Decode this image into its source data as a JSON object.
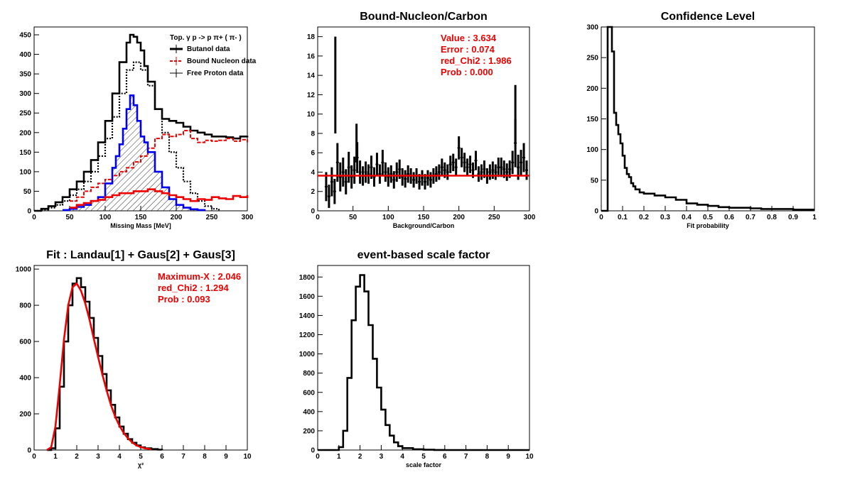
{
  "colors": {
    "black": "#000000",
    "red": "#ee0000",
    "blue": "#0000ee"
  },
  "chart_data": [
    {
      "id": "p1",
      "type": "line",
      "title": "",
      "xlabel": "Missing Mass [MeV]",
      "ylabel": "",
      "xlim": [
        0,
        300
      ],
      "ylim": [
        0,
        470
      ],
      "xticks": [
        0,
        50,
        100,
        150,
        200,
        250,
        300
      ],
      "yticks": [
        0,
        50,
        100,
        150,
        200,
        250,
        300,
        350,
        400,
        450
      ],
      "legend": {
        "title": "Top.  γ p -> p  π+ ( π- )",
        "position": "top-right",
        "entries": [
          "Butanol data",
          "Bound Nucleon data",
          "Free Proton data"
        ]
      },
      "series": [
        {
          "name": "Butanol data",
          "color": "#000000",
          "style": "step-thick",
          "x": [
            0,
            10,
            20,
            30,
            40,
            50,
            60,
            70,
            80,
            90,
            100,
            110,
            120,
            130,
            135,
            140,
            145,
            150,
            155,
            160,
            170,
            180,
            190,
            200,
            210,
            220,
            230,
            240,
            250,
            260,
            270,
            280,
            290,
            300
          ],
          "y": [
            0,
            5,
            12,
            22,
            35,
            55,
            75,
            100,
            130,
            175,
            230,
            300,
            380,
            430,
            450,
            445,
            430,
            410,
            370,
            330,
            260,
            235,
            230,
            225,
            215,
            205,
            200,
            195,
            190,
            190,
            188,
            185,
            190,
            192
          ]
        },
        {
          "name": "",
          "color": "#000000",
          "style": "dotted",
          "x": [
            0,
            10,
            20,
            30,
            40,
            50,
            60,
            70,
            80,
            90,
            100,
            110,
            120,
            130,
            140,
            150,
            160,
            170,
            180,
            190,
            200,
            210,
            220,
            230,
            240,
            250,
            260
          ],
          "y": [
            0,
            3,
            8,
            15,
            25,
            40,
            55,
            75,
            100,
            140,
            185,
            240,
            300,
            360,
            380,
            360,
            320,
            260,
            200,
            150,
            110,
            75,
            45,
            25,
            12,
            5,
            0
          ]
        },
        {
          "name": "Bound Nucleon data",
          "color": "#ee0000",
          "style": "step-dashed",
          "x": [
            50,
            60,
            70,
            80,
            90,
            100,
            110,
            120,
            130,
            140,
            150,
            160,
            170,
            180,
            190,
            200,
            210,
            220,
            230,
            240,
            250,
            260,
            270,
            280,
            290,
            300
          ],
          "y": [
            25,
            35,
            50,
            60,
            70,
            80,
            90,
            100,
            110,
            125,
            140,
            160,
            185,
            195,
            190,
            195,
            205,
            185,
            175,
            180,
            178,
            180,
            185,
            178,
            182,
            175
          ]
        },
        {
          "name": "",
          "color": "#0000ee",
          "style": "step-thick",
          "x": [
            40,
            50,
            60,
            70,
            80,
            90,
            100,
            110,
            115,
            120,
            125,
            130,
            135,
            140,
            145,
            150,
            155,
            160,
            170,
            180,
            190,
            200,
            210,
            220,
            230,
            240
          ],
          "y": [
            2,
            5,
            10,
            15,
            25,
            35,
            70,
            110,
            140,
            170,
            210,
            260,
            295,
            270,
            230,
            190,
            175,
            150,
            100,
            60,
            30,
            15,
            8,
            4,
            2,
            0
          ]
        },
        {
          "name": "",
          "color": "#ee0000",
          "style": "step-thick",
          "x": [
            50,
            60,
            70,
            80,
            90,
            100,
            110,
            120,
            130,
            140,
            150,
            160,
            170,
            180,
            190,
            200,
            210,
            220,
            230,
            240,
            250,
            260,
            270,
            280,
            290,
            300
          ],
          "y": [
            8,
            15,
            20,
            25,
            28,
            35,
            40,
            45,
            45,
            50,
            50,
            55,
            50,
            45,
            40,
            35,
            30,
            25,
            30,
            28,
            35,
            32,
            30,
            38,
            35,
            40
          ]
        }
      ]
    },
    {
      "id": "p2",
      "type": "line",
      "title": "Bound-Nucleon/Carbon",
      "xlabel": "Background/Carbon",
      "ylabel": "",
      "xlim": [
        0,
        300
      ],
      "ylim": [
        0,
        19
      ],
      "xticks": [
        0,
        50,
        100,
        150,
        200,
        250,
        300
      ],
      "yticks": [
        0,
        2,
        4,
        6,
        8,
        10,
        12,
        14,
        16,
        18
      ],
      "fit_value": 3.634,
      "stats": [
        "Value : 3.634",
        "Error : 0.074",
        "red_Chi2 : 1.986",
        "Prob : 0.000"
      ],
      "series": [
        {
          "name": "",
          "color": "#000000",
          "style": "errorbars",
          "x": [
            12,
            16,
            20,
            24,
            28,
            32,
            36,
            40,
            44,
            48,
            52,
            56,
            60,
            64,
            68,
            72,
            76,
            80,
            84,
            88,
            92,
            96,
            100,
            104,
            108,
            112,
            116,
            120,
            124,
            128,
            132,
            136,
            140,
            144,
            148,
            152,
            156,
            160,
            164,
            168,
            172,
            176,
            180,
            184,
            188,
            192,
            196,
            200,
            204,
            208,
            212,
            216,
            220,
            224,
            228,
            232,
            236,
            240,
            244,
            248,
            252,
            256,
            260,
            264,
            268,
            272,
            276,
            280,
            284,
            288,
            292,
            296
          ],
          "y": [
            2.5,
            1.5,
            3.0,
            2.0,
            5.0,
            3.5,
            4.0,
            3.0,
            4.5,
            3.5,
            4.2,
            5.5,
            4.0,
            3.6,
            4.0,
            3.8,
            4.5,
            3.5,
            4.8,
            3.8,
            5.0,
            4.0,
            3.5,
            3.8,
            3.2,
            4.0,
            4.3,
            3.5,
            3.3,
            3.8,
            3.6,
            3.2,
            3.6,
            3.0,
            3.4,
            3.0,
            3.4,
            3.2,
            3.6,
            3.8,
            4.0,
            4.5,
            4.2,
            4.0,
            4.8,
            5.0,
            4.5,
            6.5,
            5.5,
            5.0,
            4.5,
            4.8,
            4.2,
            5.2,
            3.8,
            4.0,
            4.3,
            3.6,
            4.0,
            4.2,
            4.0,
            4.5,
            4.5,
            4.3,
            4.0,
            4.3,
            5.0,
            7.0,
            4.5,
            5.0,
            5.5,
            4.2
          ],
          "err": [
            1.5,
            1.2,
            1.5,
            1.3,
            2.0,
            1.5,
            1.5,
            1.3,
            1.6,
            1.2,
            1.4,
            1.6,
            1.2,
            1.0,
            1.1,
            1.0,
            1.2,
            1.0,
            1.2,
            1.0,
            1.3,
            1.0,
            1.0,
            0.9,
            0.9,
            1.0,
            1.0,
            0.9,
            0.9,
            0.9,
            0.8,
            0.8,
            0.8,
            0.8,
            0.8,
            0.8,
            0.8,
            0.8,
            0.8,
            0.8,
            0.8,
            0.9,
            0.8,
            0.8,
            0.9,
            0.9,
            0.9,
            1.2,
            1.0,
            1.0,
            0.9,
            0.9,
            0.8,
            1.0,
            0.8,
            0.8,
            0.9,
            0.8,
            0.8,
            0.9,
            0.8,
            1.0,
            1.0,
            0.9,
            0.9,
            0.9,
            1.2,
            2.5,
            1.3,
            1.3,
            1.5,
            1.0
          ]
        }
      ],
      "outliers": [
        {
          "x": 25,
          "y": 13,
          "err": 5
        },
        {
          "x": 55,
          "y": 7,
          "err": 2
        },
        {
          "x": 280,
          "y": 10,
          "err": 3
        }
      ]
    },
    {
      "id": "p3",
      "type": "line",
      "title": "Confidence Level",
      "xlabel": "Fit probability",
      "ylabel": "",
      "xlim": [
        0,
        1
      ],
      "ylim": [
        0,
        300
      ],
      "xticks": [
        0,
        0.1,
        0.2,
        0.3,
        0.4,
        0.5,
        0.6,
        0.7,
        0.8,
        0.9,
        1
      ],
      "xticklabels": [
        "0",
        "0.1",
        "0.2",
        "0.3",
        "0.4",
        "0.5",
        "0.6",
        "0.7",
        "0.8",
        "0.9",
        "1"
      ],
      "yticks": [
        0,
        50,
        100,
        150,
        200,
        250,
        300
      ],
      "series": [
        {
          "name": "",
          "color": "#000000",
          "style": "step-thick",
          "x": [
            0.0,
            0.02,
            0.03,
            0.04,
            0.05,
            0.06,
            0.07,
            0.08,
            0.09,
            0.1,
            0.11,
            0.12,
            0.13,
            0.14,
            0.15,
            0.16,
            0.18,
            0.2,
            0.25,
            0.3,
            0.35,
            0.4,
            0.45,
            0.5,
            0.55,
            0.6,
            0.65,
            0.7,
            0.75,
            0.8,
            0.85,
            0.9,
            0.95,
            1.0
          ],
          "y": [
            0,
            0,
            300,
            300,
            260,
            160,
            140,
            125,
            110,
            90,
            70,
            60,
            55,
            45,
            40,
            35,
            30,
            28,
            25,
            22,
            18,
            12,
            10,
            8,
            6,
            5,
            5,
            4,
            3,
            3,
            3,
            2,
            2,
            2
          ]
        }
      ]
    },
    {
      "id": "p4",
      "type": "line",
      "title": "Fit : Landau[1] + Gaus[2] + Gaus[3]",
      "xlabel": "χ²",
      "ylabel": "",
      "xlim": [
        0,
        10
      ],
      "ylim": [
        0,
        1020
      ],
      "xticks": [
        0,
        1,
        2,
        3,
        4,
        5,
        6,
        7,
        8,
        9,
        10
      ],
      "yticks": [
        0,
        200,
        400,
        600,
        800,
        1000
      ],
      "stats": [
        "Maximum-X : 2.046",
        "red_Chi2 : 1.294",
        "Prob : 0.093"
      ],
      "series": [
        {
          "name": "",
          "color": "#000000",
          "style": "step-thick",
          "x": [
            0.6,
            0.8,
            1.0,
            1.2,
            1.4,
            1.6,
            1.8,
            2.0,
            2.2,
            2.4,
            2.6,
            2.8,
            3.0,
            3.2,
            3.4,
            3.6,
            3.8,
            4.0,
            4.2,
            4.4,
            4.6,
            4.8,
            5.0,
            5.2,
            5.5,
            5.8,
            6.0
          ],
          "y": [
            0,
            10,
            120,
            350,
            600,
            800,
            920,
            950,
            900,
            820,
            730,
            620,
            520,
            420,
            330,
            250,
            180,
            130,
            90,
            60,
            40,
            25,
            15,
            10,
            5,
            2,
            0
          ]
        },
        {
          "name": "",
          "color": "#ee0000",
          "style": "smooth",
          "x": [
            0.6,
            0.8,
            1.0,
            1.2,
            1.4,
            1.6,
            1.8,
            2.0,
            2.2,
            2.4,
            2.6,
            2.8,
            3.0,
            3.2,
            3.4,
            3.6,
            3.8,
            4.0,
            4.2,
            4.4,
            4.6,
            4.8,
            5.0,
            5.2,
            5.5
          ],
          "y": [
            0,
            15,
            130,
            360,
            610,
            800,
            900,
            920,
            880,
            810,
            720,
            615,
            515,
            418,
            330,
            250,
            185,
            135,
            95,
            65,
            42,
            26,
            16,
            10,
            4
          ]
        }
      ]
    },
    {
      "id": "p5",
      "type": "line",
      "title": "event-based scale factor",
      "xlabel": "scale factor",
      "ylabel": "",
      "xlim": [
        0,
        10
      ],
      "ylim": [
        0,
        1920
      ],
      "xticks": [
        0,
        1,
        2,
        3,
        4,
        5,
        6,
        7,
        8,
        9,
        10
      ],
      "yticks": [
        0,
        200,
        400,
        600,
        800,
        1000,
        1200,
        1400,
        1600,
        1800
      ],
      "series": [
        {
          "name": "",
          "color": "#000000",
          "style": "step-thick",
          "x": [
            0,
            0.5,
            1.0,
            1.2,
            1.4,
            1.6,
            1.8,
            2.0,
            2.2,
            2.4,
            2.6,
            2.8,
            3.0,
            3.2,
            3.4,
            3.6,
            3.8,
            4.0,
            4.5,
            5.0,
            5.5,
            6.0,
            10
          ],
          "y": [
            0,
            0,
            30,
            200,
            750,
            1350,
            1700,
            1820,
            1650,
            1300,
            950,
            650,
            420,
            260,
            150,
            80,
            40,
            20,
            8,
            3,
            1,
            0,
            0
          ]
        }
      ]
    }
  ]
}
